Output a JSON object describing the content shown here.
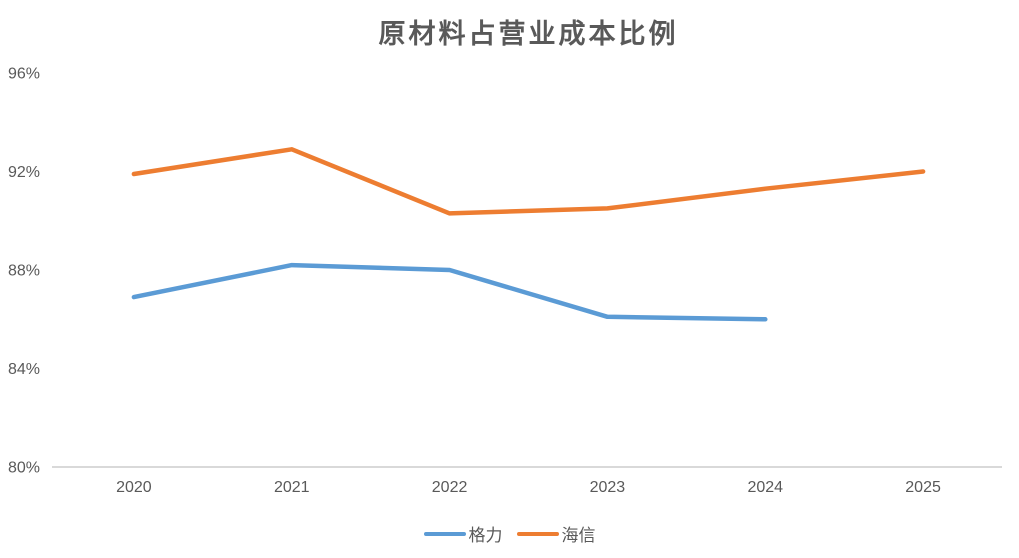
{
  "chart_data": {
    "type": "line",
    "title": "原材料占营业成本比例",
    "xlabel": "",
    "ylabel": "",
    "categories": [
      "2020",
      "2021",
      "2022",
      "2023",
      "2024",
      "2025"
    ],
    "series": [
      {
        "name": "格力",
        "color": "#5B9BD5",
        "values": [
          86.9,
          88.2,
          88.0,
          86.1,
          86.0,
          null
        ]
      },
      {
        "name": "海信",
        "color": "#ED7D31",
        "values": [
          91.9,
          92.9,
          90.3,
          90.5,
          91.3,
          92.0
        ]
      }
    ],
    "ylim": [
      80,
      96
    ],
    "yticks": [
      {
        "value": 96,
        "label": "96%"
      },
      {
        "value": 92,
        "label": "92%"
      },
      {
        "value": 88,
        "label": "88%"
      },
      {
        "value": 84,
        "label": "84%"
      },
      {
        "value": 80,
        "label": "80%"
      }
    ],
    "grid": false,
    "legend_position": "bottom",
    "axis_color": "#D9D9D9",
    "text_color": "#595959",
    "background": "#FFFFFF"
  }
}
